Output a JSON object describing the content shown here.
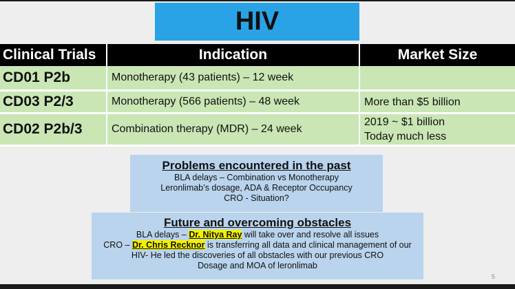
{
  "slide": {
    "title": "HIV",
    "number": "5"
  },
  "table": {
    "headers": [
      "Clinical Trials",
      "Indication",
      "Market Size"
    ],
    "rows": [
      {
        "trial": "CD01 P2b",
        "indication": "Monotherapy (43 patients) – 12 week",
        "market": [
          "",
          ""
        ]
      },
      {
        "trial": "CD03 P2/3",
        "indication": "Monotherapy (566 patients) – 48 week",
        "market": [
          "More than $5 billion",
          ""
        ]
      },
      {
        "trial": "CD02 P2b/3",
        "indication": "Combination therapy (MDR) – 24 week",
        "market": [
          "2019 ~ $1 billion",
          "Today much less"
        ]
      }
    ]
  },
  "problems": {
    "heading": "Problems encountered in the past",
    "lines": [
      "BLA delays – Combination vs Monotherapy",
      "Leronlimab’s dosage, ADA & Receptor Occupancy",
      "CRO -  Situation?"
    ]
  },
  "future": {
    "heading": "Future and overcoming obstacles",
    "line1_pre": "BLA delays – ",
    "line1_name": "Dr. Nitya Ray",
    "line1_post": " will take over and resolve all issues",
    "line2_pre": "CRO – ",
    "line2_name": "Dr. Chris Recknor",
    "line2_post": " is transferring all data and clinical management of our",
    "line3": "HIV- He led the discoveries of all obstacles with our previous CRO",
    "line4": "Dosage and MOA of leronlimab"
  },
  "colors": {
    "title_bg": "#2aa3e6",
    "header_bg": "#000000",
    "row_bg": "#c9e6b4",
    "panel_bg": "#b9d4ec",
    "highlight": "#f5f200"
  }
}
